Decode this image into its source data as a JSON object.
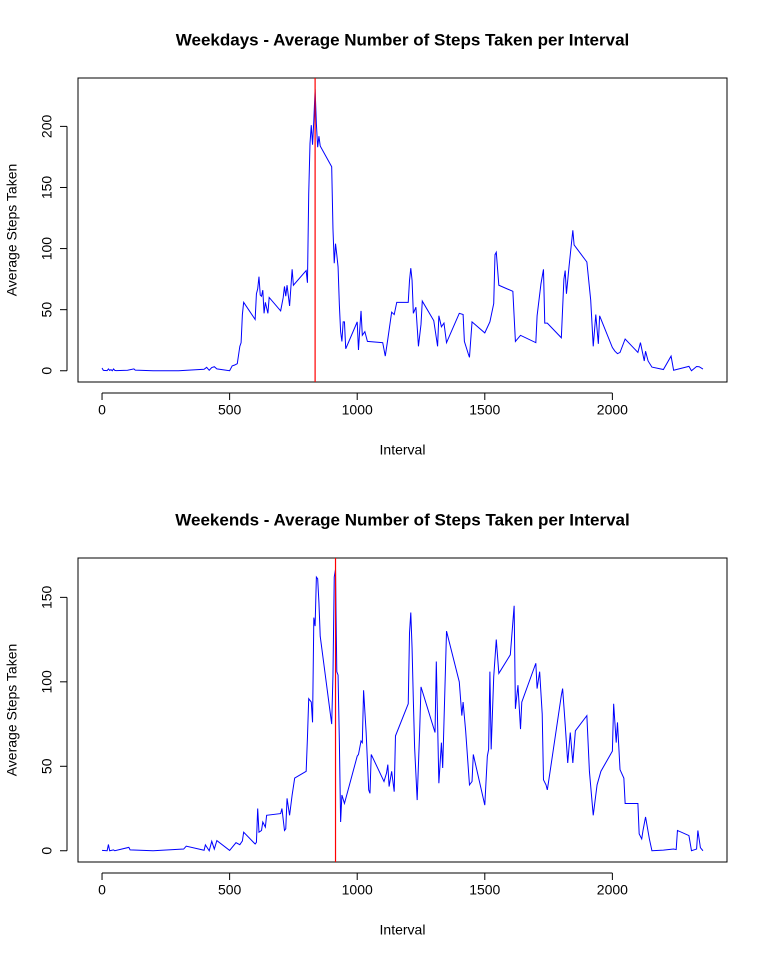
{
  "chart_data": [
    {
      "type": "line",
      "title": "Weekdays - Average Number of Steps Taken per Interval",
      "x_label": "Interval",
      "y_label": "Average Steps Taken",
      "color": "blue",
      "x": [
        0,
        5,
        10,
        15,
        20,
        25,
        30,
        35,
        40,
        45,
        50,
        55,
        100,
        125,
        130,
        200,
        300,
        400,
        410,
        420,
        430,
        440,
        450,
        500,
        510,
        520,
        530,
        540,
        545,
        550,
        555,
        600,
        605,
        610,
        615,
        620,
        625,
        630,
        635,
        640,
        650,
        655,
        700,
        710,
        715,
        720,
        725,
        735,
        745,
        750,
        800,
        805,
        810,
        815,
        820,
        825,
        830,
        835,
        840,
        845,
        850,
        855,
        900,
        905,
        910,
        915,
        920,
        925,
        930,
        935,
        940,
        945,
        950,
        955,
        1000,
        1005,
        1010,
        1015,
        1020,
        1030,
        1040,
        1100,
        1110,
        1120,
        1135,
        1145,
        1155,
        1200,
        1205,
        1210,
        1215,
        1220,
        1230,
        1240,
        1250,
        1255,
        1300,
        1315,
        1320,
        1330,
        1340,
        1350,
        1400,
        1415,
        1420,
        1435,
        1440,
        1450,
        1500,
        1520,
        1535,
        1540,
        1545,
        1555,
        1610,
        1620,
        1640,
        1700,
        1705,
        1720,
        1730,
        1735,
        1745,
        1800,
        1810,
        1815,
        1820,
        1830,
        1845,
        1850,
        1900,
        1915,
        1925,
        1935,
        1945,
        1950,
        2000,
        2010,
        2020,
        2030,
        2050,
        2100,
        2110,
        2125,
        2130,
        2140,
        2155,
        2200,
        2230,
        2240,
        2300,
        2310,
        2330,
        2340,
        2355
      ],
      "values": [
        2.3,
        0.4,
        0.2,
        0.2,
        0.1,
        1.5,
        0.3,
        0.9,
        0,
        1.5,
        0.3,
        0.1,
        0.4,
        1.5,
        0.5,
        0,
        0,
        1.2,
        2.8,
        0.4,
        2.6,
        3.3,
        1.5,
        0,
        4,
        4.7,
        5.8,
        20,
        23,
        46,
        56,
        42,
        63,
        67,
        77,
        62,
        61,
        66,
        47,
        56,
        47,
        60,
        49,
        60,
        69,
        61,
        70,
        53,
        83,
        70,
        82,
        72,
        145,
        186,
        201,
        185,
        205,
        230.4,
        202,
        183,
        192,
        184,
        167,
        116,
        88,
        104,
        95,
        85,
        54,
        32,
        24,
        40,
        40,
        18,
        40,
        17,
        34,
        49,
        29,
        32,
        24,
        23,
        12,
        26,
        48,
        46,
        56,
        56,
        74,
        84,
        74,
        47,
        52,
        20,
        38,
        57,
        41,
        20,
        45,
        36,
        39,
        23,
        47,
        46,
        24,
        14,
        11,
        40,
        31,
        40,
        55,
        95,
        97,
        70,
        65,
        24,
        29,
        23,
        45,
        71,
        83,
        39,
        39,
        27,
        75,
        82,
        63,
        85,
        115,
        103,
        89,
        58,
        20,
        46,
        22,
        45,
        19,
        16,
        14,
        15,
        26,
        15,
        23,
        8,
        16,
        8,
        3,
        1,
        12,
        0.4,
        3.6,
        0,
        3.5,
        3.3,
        1.4
      ],
      "vline": {
        "value": 835,
        "color": "red"
      },
      "xlim": [
        -94.2,
        2449.2
      ],
      "xticks": [
        0,
        500,
        1000,
        1500,
        2000
      ],
      "ylim": [
        -9.2,
        239.6
      ],
      "yticks": [
        0,
        50,
        100,
        150,
        200
      ]
    },
    {
      "type": "line",
      "title": "Weekends - Average Number of Steps Taken per Interval",
      "x_label": "Interval",
      "y_label": "Average Steps Taken",
      "color": "blue",
      "x": [
        0,
        20,
        25,
        30,
        45,
        50,
        105,
        110,
        200,
        320,
        330,
        400,
        405,
        420,
        430,
        440,
        450,
        500,
        525,
        540,
        550,
        555,
        600,
        605,
        610,
        615,
        625,
        630,
        640,
        645,
        700,
        705,
        715,
        720,
        725,
        735,
        745,
        755,
        800,
        805,
        810,
        820,
        825,
        830,
        835,
        840,
        845,
        850,
        855,
        900,
        905,
        910,
        915,
        920,
        925,
        930,
        935,
        940,
        950,
        1000,
        1005,
        1015,
        1020,
        1025,
        1035,
        1045,
        1050,
        1055,
        1105,
        1115,
        1120,
        1125,
        1135,
        1145,
        1150,
        1200,
        1205,
        1210,
        1215,
        1220,
        1225,
        1235,
        1245,
        1250,
        1305,
        1310,
        1320,
        1330,
        1335,
        1340,
        1350,
        1400,
        1410,
        1415,
        1425,
        1440,
        1450,
        1455,
        1500,
        1510,
        1515,
        1520,
        1525,
        1535,
        1545,
        1555,
        1600,
        1615,
        1620,
        1630,
        1640,
        1645,
        1700,
        1705,
        1715,
        1725,
        1730,
        1740,
        1745,
        1755,
        1800,
        1805,
        1815,
        1825,
        1835,
        1845,
        1855,
        1900,
        1910,
        1925,
        1940,
        1955,
        2000,
        2005,
        2015,
        2020,
        2030,
        2045,
        2050,
        2100,
        2105,
        2115,
        2120,
        2130,
        2145,
        2155,
        2200,
        2240,
        2250,
        2255,
        2300,
        2310,
        2330,
        2335,
        2345,
        2355
      ],
      "values": [
        0.2,
        0,
        3.7,
        0,
        0.5,
        0,
        2,
        0.5,
        0,
        1,
        2.7,
        0.3,
        3.5,
        0,
        5.6,
        1,
        6,
        0.2,
        4.8,
        3.6,
        5.8,
        11,
        4,
        5,
        25,
        11,
        12,
        17,
        14,
        21,
        22,
        25,
        12,
        13,
        31,
        21,
        33,
        43,
        47,
        67,
        90,
        88,
        76,
        138,
        133,
        162,
        161,
        147,
        127,
        75,
        104,
        162,
        166.6,
        106,
        104,
        65,
        17,
        33,
        28,
        56,
        57,
        65,
        64,
        95,
        70,
        36,
        34,
        57,
        41,
        46,
        51,
        38,
        47,
        35,
        68,
        87,
        129,
        141,
        120,
        89,
        61,
        30,
        72,
        97,
        70,
        112,
        40,
        64,
        49,
        76,
        130,
        100,
        80,
        88,
        71,
        39,
        41,
        57,
        27,
        56,
        60,
        106,
        60,
        103,
        125,
        105,
        116,
        145,
        84,
        98,
        72,
        88,
        111,
        96,
        106,
        81,
        42,
        39,
        36,
        46,
        92,
        96,
        75,
        52,
        70,
        52,
        71,
        80,
        47,
        21,
        39,
        47,
        59,
        87,
        64,
        76,
        48,
        43,
        28,
        28,
        10,
        7,
        12,
        20,
        7,
        0,
        0.4,
        1,
        0.7,
        12,
        9,
        0,
        1,
        12,
        1.8,
        0
      ],
      "vline": {
        "value": 915,
        "color": "red"
      },
      "xlim": [
        -94.2,
        2449.2
      ],
      "xticks": [
        0,
        500,
        1000,
        1500,
        2000
      ],
      "ylim": [
        -6.66,
        173.3
      ],
      "yticks": [
        0,
        50,
        100,
        150
      ]
    }
  ]
}
